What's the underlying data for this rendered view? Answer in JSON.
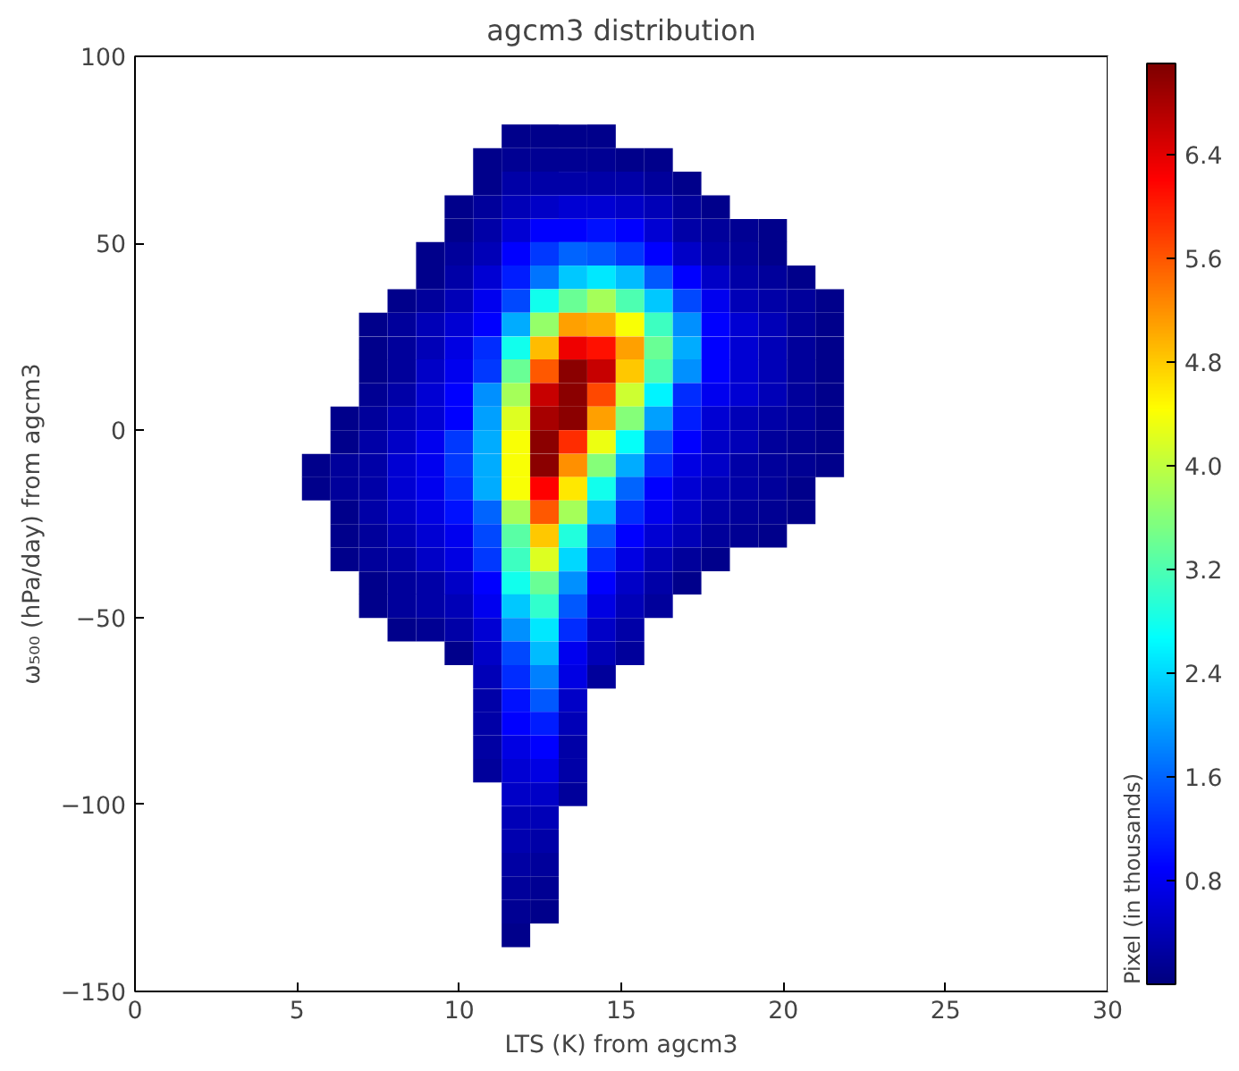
{
  "chart_data": {
    "type": "heatmap",
    "title": "agcm3 distribution",
    "xlabel": "LTS (K) from agcm3",
    "ylabel": "ω₅₀₀ (hPa/day) from agcm3",
    "clabel": "Pixel (in thousands)",
    "x": [
      5.59,
      6.47,
      7.35,
      8.23,
      9.11,
      9.99,
      10.87,
      11.75,
      12.63,
      13.51,
      14.39,
      15.27,
      16.15,
      17.03,
      17.91,
      18.79,
      19.67,
      20.55,
      21.43
    ],
    "y": [
      78.6,
      72.3,
      66.0,
      59.7,
      53.4,
      47.2,
      40.9,
      34.6,
      28.3,
      22.0,
      15.8,
      9.5,
      3.2,
      -3.1,
      -9.4,
      -15.6,
      -21.9,
      -28.2,
      -34.5,
      -40.8,
      -47.0,
      -53.3,
      -59.6,
      -65.9,
      -72.2,
      -78.4,
      -84.7,
      -91.0,
      -97.3,
      -103.6,
      -109.8,
      -116.1,
      -122.4,
      -128.7,
      -135.0
    ],
    "cells": [
      [
        null,
        null,
        null,
        null,
        null,
        null,
        null,
        0.1,
        0.1,
        0.1,
        0.1,
        null,
        null,
        null,
        null,
        null,
        null,
        null,
        null
      ],
      [
        null,
        null,
        null,
        null,
        null,
        null,
        0.1,
        0.15,
        0.15,
        0.15,
        0.15,
        0.1,
        0.1,
        null,
        null,
        null,
        null,
        null,
        null
      ],
      [
        null,
        null,
        null,
        null,
        null,
        null,
        0.1,
        0.3,
        0.3,
        0.3,
        0.3,
        0.3,
        0.2,
        0.1,
        null,
        null,
        null,
        null,
        null
      ],
      [
        null,
        null,
        null,
        null,
        null,
        0.1,
        0.2,
        0.4,
        0.5,
        0.6,
        0.6,
        0.5,
        0.4,
        0.2,
        0.1,
        null,
        null,
        null,
        null
      ],
      [
        null,
        null,
        null,
        null,
        null,
        0.1,
        0.3,
        0.6,
        0.9,
        0.9,
        1.0,
        0.9,
        0.6,
        0.3,
        0.2,
        0.15,
        0.1,
        null,
        null
      ],
      [
        null,
        null,
        null,
        null,
        0.1,
        0.2,
        0.4,
        0.9,
        1.3,
        1.6,
        1.5,
        1.3,
        0.9,
        0.5,
        0.3,
        0.2,
        0.1,
        null,
        null
      ],
      [
        null,
        null,
        null,
        null,
        0.1,
        0.3,
        0.6,
        1.1,
        1.7,
        2.3,
        2.5,
        2.2,
        1.5,
        0.9,
        0.5,
        0.3,
        0.2,
        0.1,
        null
      ],
      [
        null,
        null,
        null,
        0.1,
        0.2,
        0.4,
        0.8,
        1.4,
        2.8,
        3.4,
        3.8,
        3.2,
        2.3,
        1.4,
        0.8,
        0.4,
        0.3,
        0.2,
        0.1
      ],
      [
        null,
        null,
        0.1,
        0.2,
        0.4,
        0.6,
        0.9,
        2.1,
        3.7,
        5.1,
        5.0,
        4.4,
        3.1,
        1.9,
        0.9,
        0.6,
        0.4,
        0.2,
        0.1
      ],
      [
        null,
        null,
        0.1,
        0.2,
        0.4,
        0.7,
        1.2,
        2.8,
        4.9,
        6.3,
        6.1,
        5.1,
        3.4,
        2.1,
        0.9,
        0.6,
        0.4,
        0.2,
        0.1
      ],
      [
        null,
        null,
        0.1,
        0.2,
        0.5,
        0.8,
        1.3,
        3.4,
        5.6,
        7.0,
        6.6,
        4.8,
        3.2,
        1.9,
        0.9,
        0.6,
        0.4,
        0.2,
        0.1
      ],
      [
        null,
        null,
        0.15,
        0.3,
        0.6,
        0.9,
        1.9,
        3.8,
        6.6,
        7.0,
        5.7,
        4.1,
        2.6,
        1.2,
        0.8,
        0.6,
        0.4,
        0.2,
        0.1
      ],
      [
        null,
        0.1,
        0.2,
        0.4,
        0.6,
        0.9,
        2.0,
        4.2,
        6.8,
        7.0,
        5.1,
        3.6,
        2.0,
        1.1,
        0.6,
        0.4,
        0.3,
        0.2,
        0.1
      ],
      [
        null,
        0.1,
        0.3,
        0.5,
        0.8,
        1.3,
        2.1,
        4.4,
        7.0,
        5.9,
        4.3,
        2.7,
        1.5,
        0.9,
        0.5,
        0.4,
        0.2,
        0.15,
        0.1
      ],
      [
        0.1,
        0.2,
        0.3,
        0.6,
        0.8,
        1.3,
        2.1,
        4.4,
        7.0,
        5.2,
        3.6,
        2.1,
        1.2,
        0.7,
        0.5,
        0.3,
        0.2,
        0.15,
        0.1
      ],
      [
        0.1,
        0.2,
        0.3,
        0.6,
        0.8,
        1.2,
        2.1,
        4.4,
        6.2,
        4.6,
        2.8,
        1.6,
        0.9,
        0.6,
        0.4,
        0.3,
        0.2,
        0.1,
        null
      ],
      [
        null,
        0.1,
        0.3,
        0.5,
        0.7,
        1.0,
        1.6,
        3.8,
        5.6,
        3.8,
        2.2,
        1.2,
        0.8,
        0.5,
        0.3,
        0.2,
        0.15,
        0.1,
        null
      ],
      [
        null,
        0.1,
        0.2,
        0.4,
        0.6,
        0.8,
        1.4,
        3.3,
        4.8,
        2.9,
        1.5,
        0.9,
        0.6,
        0.4,
        0.2,
        0.15,
        0.1,
        null,
        null
      ],
      [
        null,
        0.1,
        0.2,
        0.3,
        0.5,
        0.7,
        1.3,
        3.1,
        4.2,
        2.4,
        1.2,
        0.7,
        0.4,
        0.2,
        0.1,
        null,
        null,
        null,
        null
      ],
      [
        null,
        null,
        0.1,
        0.2,
        0.3,
        0.5,
        0.9,
        2.8,
        3.4,
        1.9,
        0.9,
        0.5,
        0.3,
        0.1,
        null,
        null,
        null,
        null,
        null
      ],
      [
        null,
        null,
        0.1,
        0.2,
        0.3,
        0.4,
        0.8,
        2.3,
        3.0,
        1.5,
        0.7,
        0.4,
        0.2,
        null,
        null,
        null,
        null,
        null,
        null
      ],
      [
        null,
        null,
        null,
        0.1,
        0.15,
        0.3,
        0.6,
        1.9,
        2.5,
        1.2,
        0.5,
        0.3,
        null,
        null,
        null,
        null,
        null,
        null,
        null
      ],
      [
        null,
        null,
        null,
        null,
        null,
        0.1,
        0.5,
        1.4,
        2.2,
        0.8,
        0.4,
        0.2,
        null,
        null,
        null,
        null,
        null,
        null,
        null
      ],
      [
        null,
        null,
        null,
        null,
        null,
        null,
        0.4,
        1.2,
        1.8,
        0.7,
        0.2,
        null,
        null,
        null,
        null,
        null,
        null,
        null,
        null
      ],
      [
        null,
        null,
        null,
        null,
        null,
        null,
        0.3,
        1.0,
        1.5,
        0.5,
        null,
        null,
        null,
        null,
        null,
        null,
        null,
        null,
        null
      ],
      [
        null,
        null,
        null,
        null,
        null,
        null,
        0.3,
        0.9,
        1.1,
        0.4,
        null,
        null,
        null,
        null,
        null,
        null,
        null,
        null,
        null
      ],
      [
        null,
        null,
        null,
        null,
        null,
        null,
        0.25,
        0.7,
        0.9,
        0.3,
        null,
        null,
        null,
        null,
        null,
        null,
        null,
        null,
        null
      ],
      [
        null,
        null,
        null,
        null,
        null,
        null,
        0.2,
        0.6,
        0.7,
        0.3,
        null,
        null,
        null,
        null,
        null,
        null,
        null,
        null,
        null
      ],
      [
        null,
        null,
        null,
        null,
        null,
        null,
        null,
        0.5,
        0.5,
        0.2,
        null,
        null,
        null,
        null,
        null,
        null,
        null,
        null,
        null
      ],
      [
        null,
        null,
        null,
        null,
        null,
        null,
        null,
        0.4,
        0.4,
        null,
        null,
        null,
        null,
        null,
        null,
        null,
        null,
        null,
        null
      ],
      [
        null,
        null,
        null,
        null,
        null,
        null,
        null,
        0.35,
        0.3,
        null,
        null,
        null,
        null,
        null,
        null,
        null,
        null,
        null,
        null
      ],
      [
        null,
        null,
        null,
        null,
        null,
        null,
        null,
        0.25,
        0.2,
        null,
        null,
        null,
        null,
        null,
        null,
        null,
        null,
        null,
        null
      ],
      [
        null,
        null,
        null,
        null,
        null,
        null,
        null,
        0.2,
        0.15,
        null,
        null,
        null,
        null,
        null,
        null,
        null,
        null,
        null,
        null
      ],
      [
        null,
        null,
        null,
        null,
        null,
        null,
        null,
        0.15,
        0.1,
        null,
        null,
        null,
        null,
        null,
        null,
        null,
        null,
        null,
        null
      ],
      [
        null,
        null,
        null,
        null,
        null,
        null,
        null,
        0.1,
        null,
        null,
        null,
        null,
        null,
        null,
        null,
        null,
        null,
        null,
        null
      ]
    ],
    "clim": [
      0,
      7.1
    ],
    "cticks": [
      0.8,
      1.6,
      2.4,
      3.2,
      {
        "value": 4,
        "label": "4.0"
      },
      4.8,
      5.6,
      6.4
    ],
    "xlim": [
      0,
      30
    ],
    "xticks": [
      0,
      5,
      10,
      15,
      20,
      25,
      30
    ],
    "ylim": [
      -150,
      100
    ],
    "yticks": [
      -150,
      -100,
      -50,
      0,
      50,
      100
    ],
    "grid": false
  }
}
